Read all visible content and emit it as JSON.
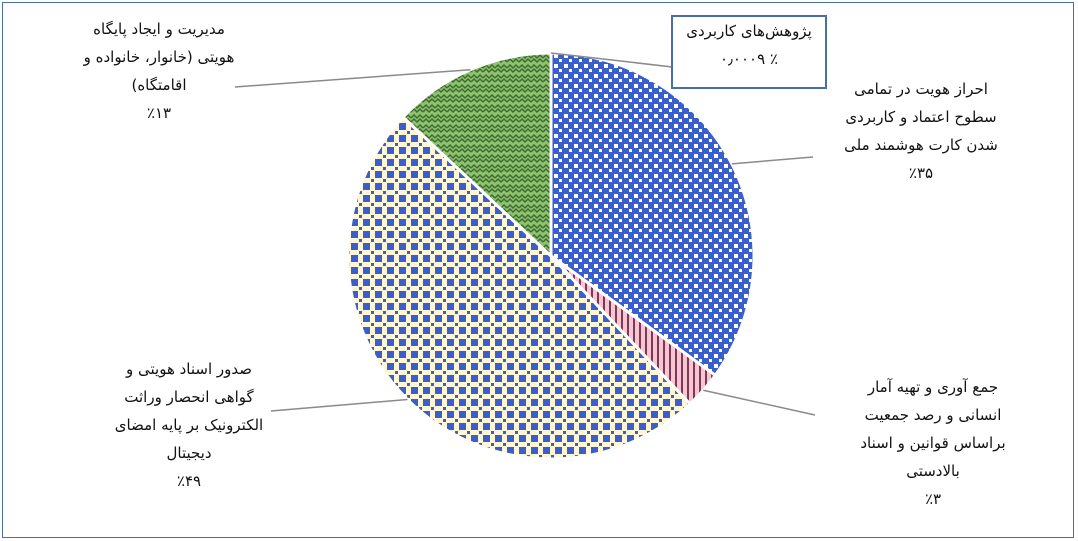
{
  "chart_data": {
    "type": "pie",
    "title": "",
    "slices": [
      {
        "label_lines": [
          "پژوهش‌های کاربردی"
        ],
        "value_label": "٪ ۰٫۰۰۰۹",
        "value": 0.0009,
        "color": "#3a5fcd"
      },
      {
        "label_lines": [
          "احراز  هویت در تمامی",
          "سطوح اعتماد و کاربردی",
          "شدن کارت هوشمند ملی"
        ],
        "value_label": "٪۳۵",
        "value": 35,
        "color": "#3a5fcd"
      },
      {
        "label_lines": [
          "جمع آوری و تهیه آمار",
          "انسانی و رصد جمعیت",
          "براساس قوانین و اسناد",
          "بالادستی"
        ],
        "value_label": "٪۳",
        "value": 3,
        "color": "#f4a7b9"
      },
      {
        "label_lines": [
          "صدور اسناد هویتی و",
          "گواهی انحصار وراثت",
          "الکترونیک بر پایه امضای",
          "دیجیتال"
        ],
        "value_label": "٪۴۹",
        "value": 49,
        "color": "#3a5fcd"
      },
      {
        "label_lines": [
          "مدیریت و ایجاد پایگاه",
          "هویتی (خانوار، خانواده و",
          "اقامتگاه)"
        ],
        "value_label": "٪۱۳",
        "value": 13,
        "color": "#8dc26f"
      }
    ]
  }
}
